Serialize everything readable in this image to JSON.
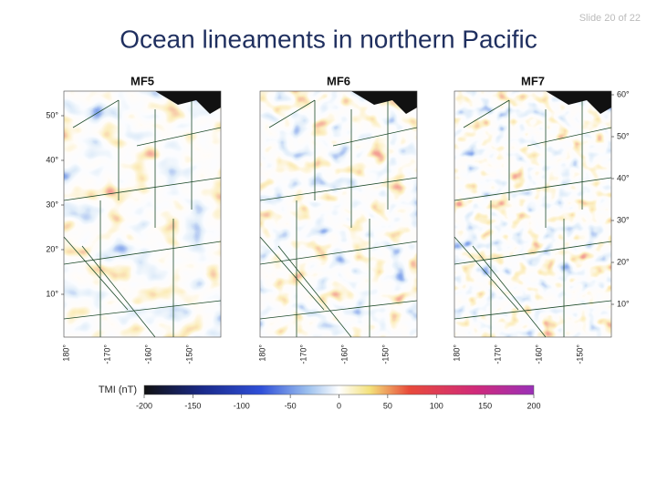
{
  "slide_number": "Slide 20 of 22",
  "title": "Ocean lineaments in northern Pacific",
  "panels": [
    {
      "label": "MF5",
      "lon_labels": [
        "180°",
        "-170°",
        "-160°",
        "-150°"
      ],
      "lat_labels": [
        "50°",
        "40°",
        "30°",
        "20°",
        "10°"
      ]
    },
    {
      "label": "MF6",
      "lon_labels": [
        "180°",
        "-170°",
        "-160°",
        "-150°"
      ]
    },
    {
      "label": "MF7",
      "lon_labels": [
        "180°",
        "-170°",
        "-160°",
        "-150°"
      ],
      "lat_labels": [
        "60°",
        "50°",
        "40°",
        "30°",
        "20°",
        "10°"
      ]
    }
  ],
  "colorbar": {
    "label": "TMI (nT)",
    "ticks": [
      -200,
      -150,
      -100,
      -50,
      0,
      50,
      100,
      150,
      200
    ]
  }
}
